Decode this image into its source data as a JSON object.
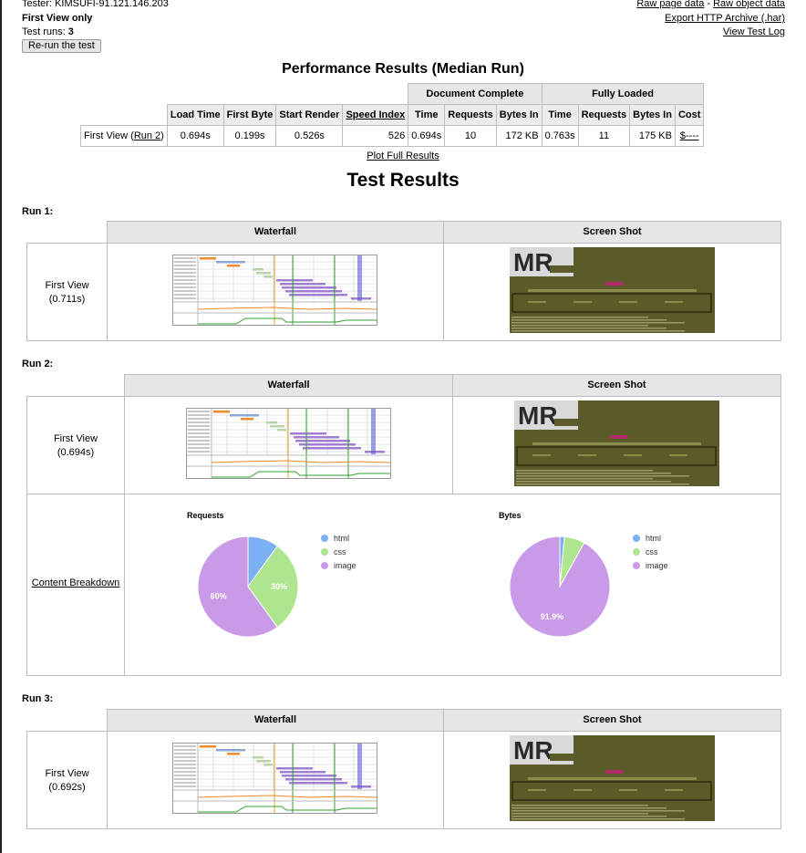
{
  "header": {
    "tester": "Tester: KIMSUFI-91.121.146.203",
    "view_mode": "First View only",
    "test_runs_label": "Test runs: ",
    "test_runs_value": "3",
    "rerun_button": "Re-run the test",
    "raw_page_data": "Raw page data",
    "separator": " - ",
    "raw_object_data": "Raw object data",
    "export_har": "Export HTTP Archive (.har)",
    "view_test_log": "View Test Log"
  },
  "performance": {
    "title": "Performance Results (Median Run)",
    "group_doc_complete": "Document Complete",
    "group_fully_loaded": "Fully Loaded",
    "columns": [
      "Load Time",
      "First Byte",
      "Start Render",
      "Speed Index",
      "Time",
      "Requests",
      "Bytes In",
      "Time",
      "Requests",
      "Bytes In",
      "Cost"
    ],
    "row_label_prefix": "First View (",
    "row_label_link": "Run 2",
    "row_label_suffix": ")",
    "values": [
      "0.694s",
      "0.199s",
      "0.526s",
      "526",
      "0.694s",
      "10",
      "172 KB",
      "0.763s",
      "11",
      "175 KB",
      "$----"
    ],
    "plot_full_results": "Plot Full Results"
  },
  "test_results": {
    "title": "Test Results",
    "waterfall_header": "Waterfall",
    "screenshot_header": "Screen Shot",
    "runs": [
      {
        "label": "Run 1:",
        "first_view": "First View",
        "time": "(0.711s)"
      },
      {
        "label": "Run 2:",
        "first_view": "First View",
        "time": "(0.694s)"
      },
      {
        "label": "Run 3:",
        "first_view": "First View",
        "time": "(0.692s)"
      }
    ],
    "screenshot_logo": "MR",
    "content_breakdown_link": "Content Breakdown"
  },
  "chart_data": [
    {
      "type": "pie",
      "title": "Requests",
      "labels": [
        "html",
        "css",
        "image"
      ],
      "values": [
        10,
        30,
        60
      ],
      "data_labels": [
        "",
        "30%",
        "60%"
      ],
      "colors": [
        "#7cb0f2",
        "#aee58e",
        "#c99ae8"
      ],
      "legend": "right"
    },
    {
      "type": "pie",
      "title": "Bytes",
      "labels": [
        "html",
        "css",
        "image"
      ],
      "values": [
        1.5,
        6.6,
        91.9
      ],
      "data_labels": [
        "",
        "",
        "91.9%"
      ],
      "colors": [
        "#7cb0f2",
        "#aee58e",
        "#c99ae8"
      ],
      "legend": "right"
    }
  ]
}
